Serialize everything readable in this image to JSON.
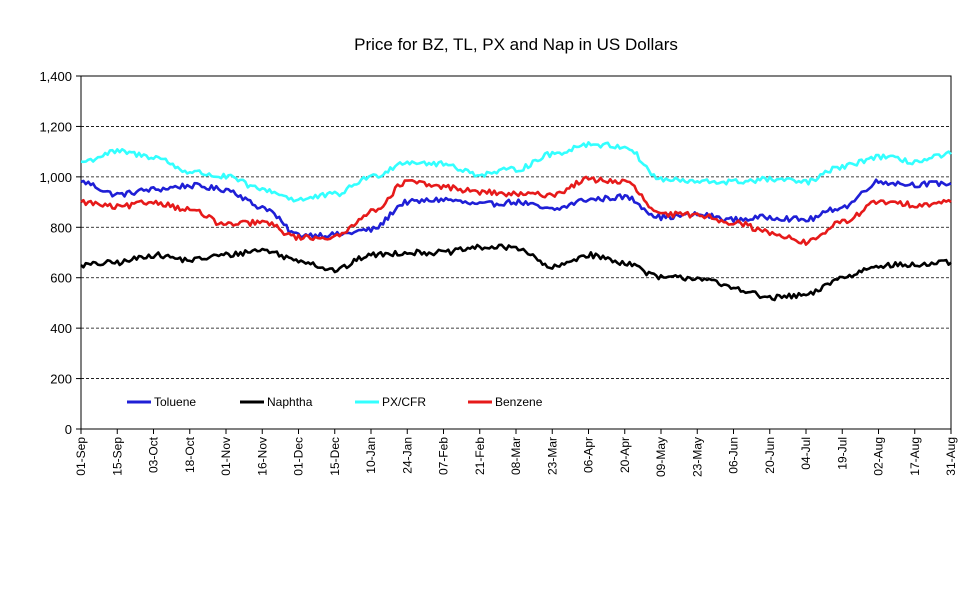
{
  "chart_data": {
    "type": "line",
    "title": "Price for BZ, TL, PX and Nap in US Dollars",
    "xlabel": "",
    "ylabel": "",
    "ylim": [
      0,
      1400
    ],
    "yticks": [
      0,
      200,
      400,
      600,
      800,
      1000,
      1200,
      1400
    ],
    "ytick_labels": [
      "0",
      "200",
      "400",
      "600",
      "800",
      "1,000",
      "1,200",
      "1,400"
    ],
    "grid": "horizontal-dashed",
    "legend_position": "bottom-left-inside",
    "categories": [
      "01-Sep",
      "15-Sep",
      "03-Oct",
      "18-Oct",
      "01-Nov",
      "16-Nov",
      "01-Dec",
      "15-Dec",
      "10-Jan",
      "24-Jan",
      "07-Feb",
      "21-Feb",
      "08-Mar",
      "23-Mar",
      "06-Apr",
      "20-Apr",
      "09-May",
      "23-May",
      "06-Jun",
      "20-Jun",
      "04-Jul",
      "19-Jul",
      "02-Aug",
      "17-Aug",
      "31-Aug"
    ],
    "series": [
      {
        "name": "Toluene",
        "color": "#1f1fd6",
        "values": [
          980,
          930,
          950,
          965,
          950,
          880,
          770,
          770,
          790,
          900,
          910,
          890,
          900,
          870,
          910,
          920,
          840,
          850,
          830,
          840,
          830,
          880,
          980,
          970,
          975
        ]
      },
      {
        "name": "Naphtha",
        "color": "#000000",
        "values": [
          650,
          660,
          690,
          670,
          690,
          710,
          670,
          630,
          690,
          700,
          700,
          720,
          720,
          640,
          690,
          660,
          600,
          600,
          560,
          520,
          530,
          600,
          650,
          650,
          660
        ]
      },
      {
        "name": "PX/CFR",
        "color": "#33ffff",
        "values": [
          1060,
          1100,
          1080,
          1020,
          1000,
          950,
          910,
          930,
          1000,
          1060,
          1050,
          1010,
          1030,
          1090,
          1130,
          1120,
          990,
          980,
          980,
          990,
          980,
          1040,
          1080,
          1060,
          1090
        ]
      },
      {
        "name": "Benzene",
        "color": "#e61a1a",
        "values": [
          900,
          880,
          900,
          870,
          810,
          820,
          760,
          760,
          860,
          980,
          960,
          940,
          930,
          930,
          990,
          980,
          850,
          850,
          820,
          780,
          740,
          820,
          900,
          890,
          900
        ]
      }
    ]
  }
}
